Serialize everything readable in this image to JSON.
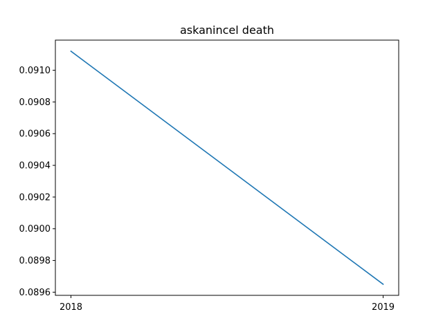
{
  "chart_data": {
    "type": "line",
    "title": "askanincel death",
    "xlabel": "",
    "ylabel": "",
    "x": [
      "2018",
      "2019"
    ],
    "series": [
      {
        "values": [
          0.09112,
          0.08965
        ],
        "color": "#1f77b4"
      }
    ],
    "xticks": [
      "2018",
      "2019"
    ],
    "yticks": [
      "0.0896",
      "0.0898",
      "0.0900",
      "0.0902",
      "0.0904",
      "0.0906",
      "0.0908",
      "0.0910"
    ],
    "ylim": [
      0.08958,
      0.09119
    ],
    "grid": false,
    "legend": "none"
  }
}
